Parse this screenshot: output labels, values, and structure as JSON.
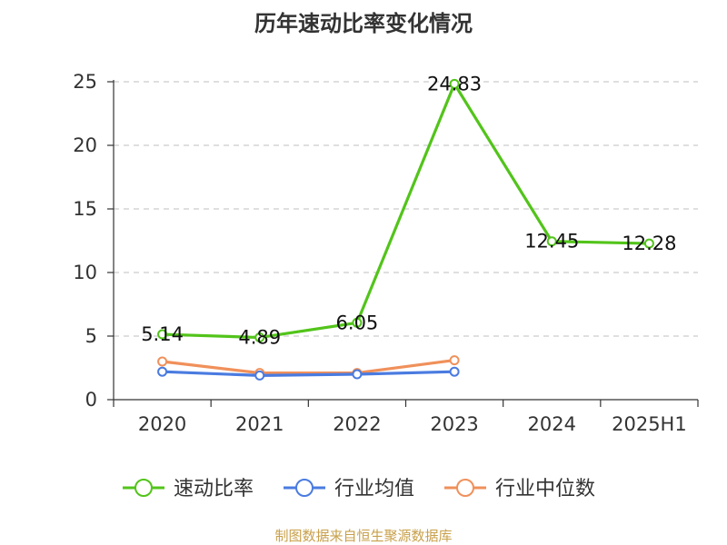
{
  "colors": {
    "text": "#333333",
    "grid": "#cccccc",
    "source": "#c8a04a"
  },
  "source_note": "制图数据来自恒生聚源数据库",
  "chart_data": {
    "type": "line",
    "title": "历年速动比率变化情况",
    "xlabel": "",
    "ylabel": "",
    "categories": [
      "2020",
      "2021",
      "2022",
      "2023",
      "2024",
      "2025H1"
    ],
    "ylim": [
      0,
      25
    ],
    "yticks": [
      0,
      5,
      10,
      15,
      20,
      25
    ],
    "grid": true,
    "legend_position": "bottom",
    "series": [
      {
        "name": "速动比率",
        "color": "#52c41a",
        "values": [
          5.14,
          4.89,
          6.05,
          24.83,
          12.45,
          12.28
        ],
        "labels": [
          "5.14",
          "4.89",
          "6.05",
          "24.83",
          "12.45",
          "12.28"
        ],
        "show_labels": true
      },
      {
        "name": "行业均值",
        "color": "#4a7be0",
        "values": [
          2.2,
          1.9,
          2.0,
          2.2,
          null,
          null
        ],
        "show_labels": false
      },
      {
        "name": "行业中位数",
        "color": "#f0905a",
        "values": [
          3.0,
          2.1,
          2.1,
          3.1,
          null,
          null
        ],
        "show_labels": false
      }
    ]
  }
}
